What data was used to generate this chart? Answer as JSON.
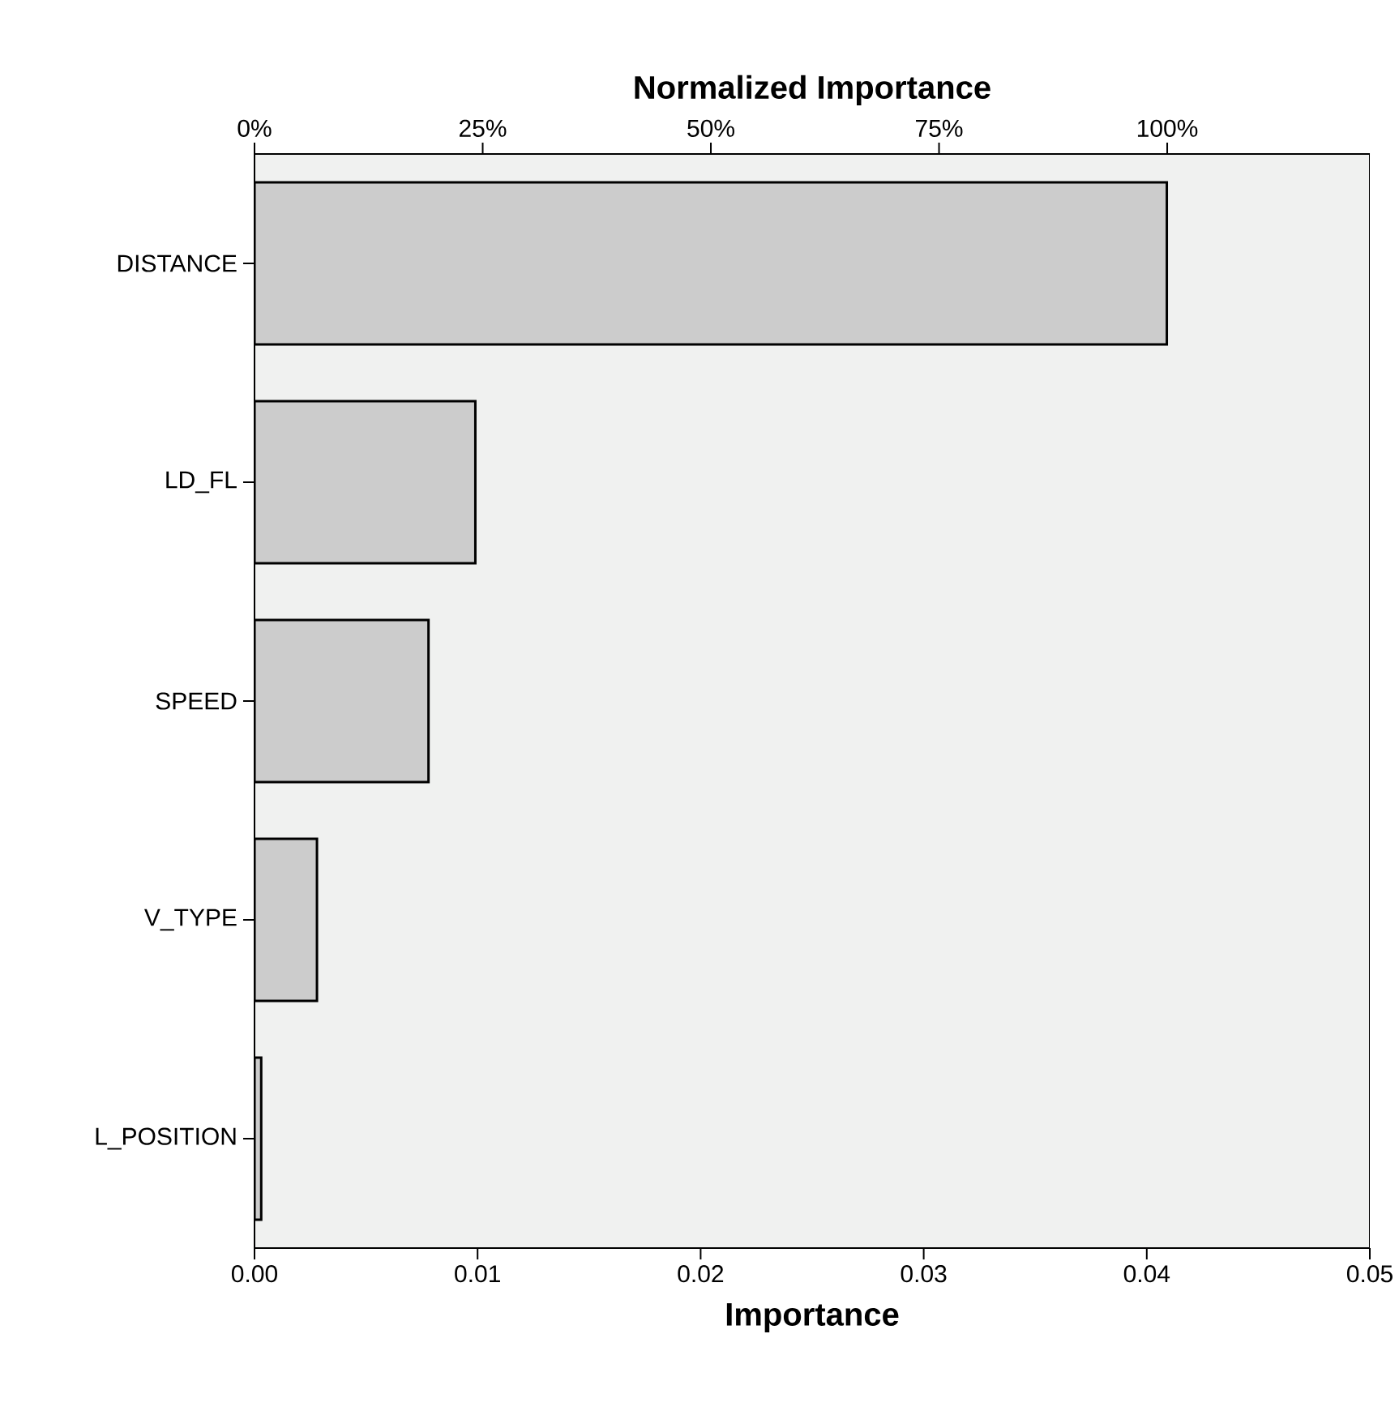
{
  "chart_data": {
    "type": "bar",
    "orientation": "horizontal",
    "categories": [
      "DISTANCE",
      "LD_FL",
      "SPEED",
      "V_TYPE",
      "L_POSITION"
    ],
    "values": [
      0.0409,
      0.0099,
      0.0078,
      0.0028,
      0.0003
    ],
    "color": "#cccccc",
    "xlabel": "Importance",
    "x2label": "Normalized Importance",
    "xlim": [
      0,
      0.05
    ],
    "xticks": [
      {
        "value": 0,
        "label": "0.00"
      },
      {
        "value": 0.01,
        "label": "0.01"
      },
      {
        "value": 0.02,
        "label": "0.02"
      },
      {
        "value": 0.03,
        "label": "0.03"
      },
      {
        "value": 0.04,
        "label": "0.04"
      },
      {
        "value": 0.05,
        "label": "0.05"
      }
    ],
    "x2lim": [
      0,
      122.2
    ],
    "x2ticks": [
      {
        "value": 0,
        "label": "0%"
      },
      {
        "value": 25,
        "label": "25%"
      },
      {
        "value": 50,
        "label": "50%"
      },
      {
        "value": 75,
        "label": "75%"
      },
      {
        "value": 100,
        "label": "100%"
      }
    ]
  }
}
